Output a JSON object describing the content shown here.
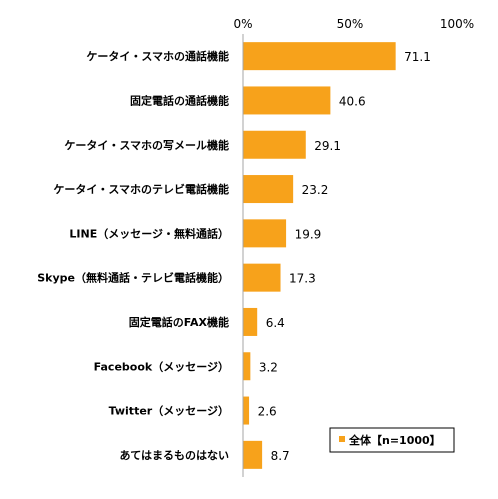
{
  "chart_data": {
    "type": "bar",
    "orientation": "horizontal",
    "categories": [
      "ケータイ・スマホの通話機能",
      "固定電話の通話機能",
      "ケータイ・スマホの写メール機能",
      "ケータイ・スマホのテレビ電話機能",
      "LINE（メッセージ・無料通話）",
      "Skype（無料通話・テレビ電話機能）",
      "固定電話のFAX機能",
      "Facebook（メッセージ）",
      "Twitter（メッセージ）",
      "あてはまるものはない"
    ],
    "series": [
      {
        "name": "全体【n=1000】",
        "values": [
          71.1,
          40.6,
          29.1,
          23.2,
          19.9,
          17.3,
          6.4,
          3.2,
          2.6,
          8.7
        ],
        "value_labels": [
          "71.1",
          "40.6",
          "29.1",
          "23.2",
          "19.9",
          "17.3",
          "6.4",
          "3.2",
          "2.6",
          "8.7"
        ],
        "color": "#f7a21b"
      }
    ],
    "xlim": [
      0,
      100
    ],
    "ticks": [
      0,
      50,
      100
    ],
    "tick_labels": [
      "0%",
      "50%",
      "100%"
    ],
    "grid": false,
    "legend_position": "bottom-right",
    "colors": {
      "bar": "#f7a21b",
      "axis": "#a6a6a6",
      "legend_border": "#000000"
    }
  }
}
